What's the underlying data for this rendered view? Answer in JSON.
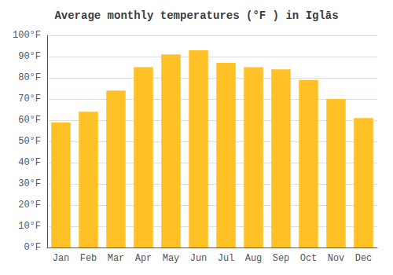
{
  "chart_data": {
    "type": "bar",
    "title": "Average monthly temperatures (°F ) in Iglās",
    "categories": [
      "Jan",
      "Feb",
      "Mar",
      "Apr",
      "May",
      "Jun",
      "Jul",
      "Aug",
      "Sep",
      "Oct",
      "Nov",
      "Dec"
    ],
    "values": [
      59,
      64,
      74,
      85,
      91,
      93,
      87,
      85,
      84,
      79,
      70,
      61
    ],
    "color": "#FFC125",
    "ylim": [
      0,
      100
    ],
    "yticks": [
      {
        "value": 0,
        "label": "0°F"
      },
      {
        "value": 10,
        "label": "10°F"
      },
      {
        "value": 20,
        "label": "20°F"
      },
      {
        "value": 30,
        "label": "30°F"
      },
      {
        "value": 40,
        "label": "40°F"
      },
      {
        "value": 50,
        "label": "50°F"
      },
      {
        "value": 60,
        "label": "60°F"
      },
      {
        "value": 70,
        "label": "70°F"
      },
      {
        "value": 80,
        "label": "80°F"
      },
      {
        "value": 90,
        "label": "90°F"
      },
      {
        "value": 100,
        "label": "100°F"
      }
    ],
    "grid": true
  }
}
